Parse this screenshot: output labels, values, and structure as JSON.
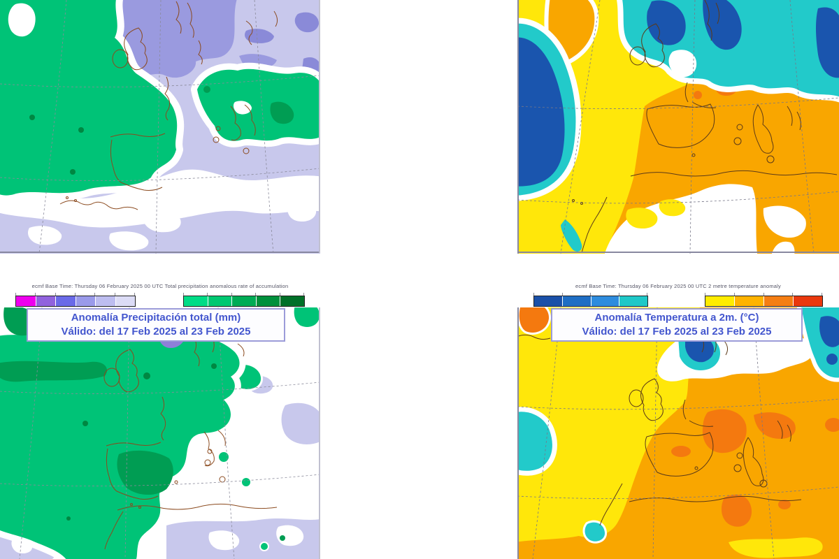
{
  "page": {
    "background": "#ffffff"
  },
  "palette": {
    "lavender": "#C8C8EC",
    "periwinkle": "#9A9ADF",
    "periwinkle2": "#8A8AD8",
    "violet": "#8F7FD8",
    "violet_dark": "#6253C8",
    "green": "#00C377",
    "green_dark": "#009D53",
    "green_darker": "#008742",
    "yellow": "#FFE70A",
    "orange": "#F9A600",
    "orange_deep": "#F4790F",
    "cyan": "#22CACA",
    "blue_dark": "#1A55AE",
    "coast": "#8B4A1E",
    "coast_dark": "#5C3A18",
    "graticule": "#8A8A9A",
    "map_border": "#8888A0",
    "title_text": "#4356CE",
    "header_text": "#555566",
    "box_border": "#9C9CD9",
    "box_bg": "#FDFDFF",
    "bar_border": "#222222"
  },
  "precipitation": {
    "header": "ecmf  Base Time: Thursday 06 February 2025 00 UTC Total precipitation anomalous rate of accumulation",
    "title": "Anomalía Precipitación total (mm)",
    "valid": "Válido: del 17 Feb 2025 al 23 Feb 2025",
    "colorbar_negative": [
      "#EE00EE",
      "#9163DE",
      "#6A6AE8",
      "#9A9AEA",
      "#BDBDF0",
      "#DCDCF6"
    ],
    "colorbar_positive": [
      "#00DC86",
      "#00C871",
      "#00AC55",
      "#00903C",
      "#007028"
    ]
  },
  "temperature": {
    "header": "ecmf  Base Time: Thursday 06 February 2025 00 UTC 2 metre temperature anomaly",
    "title": "Anomalía Temperatura a 2m. (°C)",
    "valid": "Válido: del 17 Feb 2025 al 23 Feb 2025",
    "colorbar_negative": [
      "#1A50A8",
      "#1F6EC4",
      "#2E8CDE",
      "#1FC8C8"
    ],
    "colorbar_positive": [
      "#FFEC00",
      "#FFB300",
      "#F57E14",
      "#E9380E"
    ]
  }
}
